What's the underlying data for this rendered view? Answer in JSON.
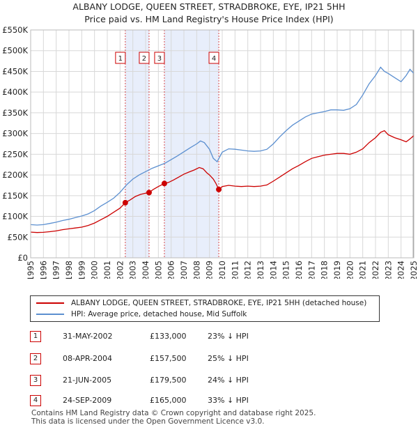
{
  "header": {
    "line1": "ALBANY LODGE, QUEEN STREET, STRADBROKE, EYE, IP21 5HH",
    "line2": "Price paid vs. HM Land Registry's House Price Index (HPI)"
  },
  "colors": {
    "price": "#cc0000",
    "hpi": "#5b8fd0",
    "shade": "#e8eefb",
    "grid": "#d8d8d8"
  },
  "chart_data": {
    "type": "line",
    "title": "ALBANY LODGE, QUEEN STREET, STRADBROKE, EYE, IP21 5HH",
    "subtitle": "Price paid vs. HM Land Registry's House Price Index (HPI)",
    "xlabel": "",
    "ylabel": "",
    "xlim": [
      1995,
      2025
    ],
    "ylim": [
      0,
      550000
    ],
    "y_ticks": [
      {
        "value": 0,
        "label": "£0"
      },
      {
        "value": 50000,
        "label": "£50K"
      },
      {
        "value": 100000,
        "label": "£100K"
      },
      {
        "value": 150000,
        "label": "£150K"
      },
      {
        "value": 200000,
        "label": "£200K"
      },
      {
        "value": 250000,
        "label": "£250K"
      },
      {
        "value": 300000,
        "label": "£300K"
      },
      {
        "value": 350000,
        "label": "£350K"
      },
      {
        "value": 400000,
        "label": "£400K"
      },
      {
        "value": 450000,
        "label": "£450K"
      },
      {
        "value": 500000,
        "label": "£500K"
      },
      {
        "value": 550000,
        "label": "£550K"
      }
    ],
    "x_ticks": [
      "1995",
      "1996",
      "1997",
      "1998",
      "1999",
      "2000",
      "2001",
      "2002",
      "2003",
      "2004",
      "2005",
      "2006",
      "2007",
      "2008",
      "2009",
      "2010",
      "2011",
      "2012",
      "2013",
      "2014",
      "2015",
      "2016",
      "2017",
      "2018",
      "2019",
      "2020",
      "2021",
      "2022",
      "2023",
      "2024",
      "2025"
    ],
    "grid": true,
    "legend_position": "below",
    "shaded_ranges": [
      [
        2002.41,
        2004.27
      ],
      [
        2005.47,
        2009.73
      ]
    ],
    "series": [
      {
        "name": "ALBANY LODGE, QUEEN STREET, STRADBROKE, EYE, IP21 5HH (detached house)",
        "color": "#cc0000",
        "x": [
          1995.0,
          1995.5,
          1996.0,
          1996.5,
          1997.0,
          1997.5,
          1998.0,
          1998.5,
          1999.0,
          1999.5,
          2000.0,
          2000.5,
          2001.0,
          2001.5,
          2002.0,
          2002.41,
          2002.8,
          2003.2,
          2003.6,
          2004.0,
          2004.27,
          2004.6,
          2005.0,
          2005.47,
          2005.8,
          2006.2,
          2006.6,
          2007.0,
          2007.4,
          2007.8,
          2008.2,
          2008.5,
          2008.8,
          2009.0,
          2009.3,
          2009.5,
          2009.73,
          2010.0,
          2010.5,
          2011.0,
          2011.5,
          2012.0,
          2012.5,
          2013.0,
          2013.5,
          2014.0,
          2014.5,
          2015.0,
          2015.5,
          2016.0,
          2016.5,
          2017.0,
          2017.5,
          2018.0,
          2018.5,
          2019.0,
          2019.5,
          2020.0,
          2020.5,
          2021.0,
          2021.5,
          2022.0,
          2022.4,
          2022.7,
          2023.0,
          2023.5,
          2024.0,
          2024.4,
          2024.7,
          2025.0
        ],
        "values": [
          62000,
          61000,
          61500,
          63000,
          65000,
          68000,
          70000,
          72000,
          74000,
          78000,
          84000,
          92000,
          100000,
          110000,
          120000,
          133000,
          140000,
          148000,
          153000,
          156000,
          157500,
          165000,
          172000,
          179500,
          182000,
          188000,
          195000,
          202000,
          207000,
          212000,
          218000,
          215000,
          205000,
          200000,
          190000,
          180000,
          165000,
          172000,
          175000,
          173000,
          172000,
          173000,
          172000,
          173000,
          176000,
          185000,
          195000,
          205000,
          215000,
          223000,
          232000,
          240000,
          244000,
          248000,
          250000,
          252000,
          252000,
          250000,
          255000,
          263000,
          278000,
          290000,
          303000,
          307000,
          297000,
          290000,
          285000,
          280000,
          287000,
          295000
        ]
      },
      {
        "name": "HPI: Average price, detached house, Mid Suffolk",
        "color": "#5b8fd0",
        "x": [
          1995.0,
          1995.5,
          1996.0,
          1996.5,
          1997.0,
          1997.5,
          1998.0,
          1998.5,
          1999.0,
          1999.5,
          2000.0,
          2000.5,
          2001.0,
          2001.5,
          2002.0,
          2002.5,
          2003.0,
          2003.5,
          2004.0,
          2004.5,
          2005.0,
          2005.5,
          2006.0,
          2006.5,
          2007.0,
          2007.5,
          2008.0,
          2008.3,
          2008.6,
          2009.0,
          2009.3,
          2009.6,
          2010.0,
          2010.5,
          2011.0,
          2011.5,
          2012.0,
          2012.5,
          2013.0,
          2013.5,
          2014.0,
          2014.5,
          2015.0,
          2015.5,
          2016.0,
          2016.5,
          2017.0,
          2017.5,
          2018.0,
          2018.5,
          2019.0,
          2019.5,
          2020.0,
          2020.5,
          2021.0,
          2021.5,
          2022.0,
          2022.4,
          2022.7,
          2023.0,
          2023.5,
          2024.0,
          2024.4,
          2024.7,
          2025.0
        ],
        "values": [
          80000,
          79000,
          80000,
          83000,
          86000,
          90000,
          93000,
          97000,
          101000,
          106000,
          114000,
          125000,
          134000,
          144000,
          158000,
          176000,
          190000,
          200000,
          208000,
          216000,
          222000,
          228000,
          237000,
          246000,
          256000,
          266000,
          275000,
          282000,
          278000,
          262000,
          240000,
          232000,
          255000,
          263000,
          262000,
          260000,
          258000,
          257000,
          258000,
          262000,
          275000,
          292000,
          307000,
          320000,
          330000,
          340000,
          347000,
          350000,
          353000,
          357000,
          357000,
          356000,
          360000,
          370000,
          393000,
          420000,
          440000,
          460000,
          450000,
          445000,
          435000,
          425000,
          440000,
          455000,
          445000
        ]
      }
    ],
    "transactions": [
      {
        "id": "1",
        "date": "31-MAY-2002",
        "price": "£133,000",
        "hpi": "23% ↓ HPI",
        "x": 2002.41,
        "value": 133000
      },
      {
        "id": "2",
        "date": "08-APR-2004",
        "price": "£157,500",
        "hpi": "25% ↓ HPI",
        "x": 2004.27,
        "value": 157500
      },
      {
        "id": "3",
        "date": "21-JUN-2005",
        "price": "£179,500",
        "hpi": "24% ↓ HPI",
        "x": 2005.47,
        "value": 179500
      },
      {
        "id": "4",
        "date": "24-SEP-2009",
        "price": "£165,000",
        "hpi": "33% ↓ HPI",
        "x": 2009.73,
        "value": 165000
      }
    ]
  },
  "legend": {
    "price_label": "ALBANY LODGE, QUEEN STREET, STRADBROKE, EYE, IP21 5HH (detached house)",
    "hpi_label": "HPI: Average price, detached house, Mid Suffolk"
  },
  "footer": {
    "line1": "Contains HM Land Registry data © Crown copyright and database right 2025.",
    "line2": "This data is licensed under the Open Government Licence v3.0."
  }
}
